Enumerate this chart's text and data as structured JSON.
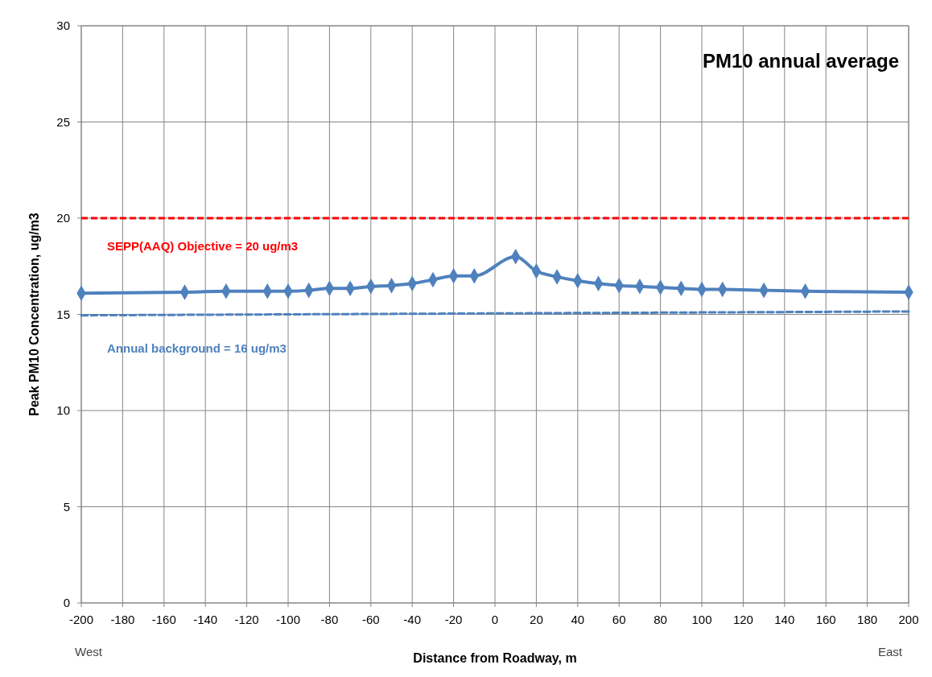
{
  "chart_data": {
    "type": "line",
    "title": "PM10 annual average",
    "xlabel": "Distance from Roadway, m",
    "ylabel": "Peak PM10 Concentration, ug/m3",
    "annotations": [
      "West",
      "East"
    ],
    "x": [
      -200,
      -150,
      -130,
      -110,
      -100,
      -90,
      -80,
      -70,
      -60,
      -50,
      -40,
      -30,
      -20,
      -10,
      10,
      20,
      30,
      40,
      50,
      60,
      70,
      80,
      90,
      100,
      110,
      130,
      150,
      200
    ],
    "series": [
      {
        "color": "#4f81bd",
        "values": [
          16.1,
          16.15,
          16.2,
          16.2,
          16.2,
          16.25,
          16.35,
          16.35,
          16.45,
          16.5,
          16.6,
          16.8,
          17.0,
          17.0,
          18.0,
          17.25,
          16.95,
          16.75,
          16.6,
          16.5,
          16.45,
          16.4,
          16.35,
          16.3,
          16.3,
          16.25,
          16.2,
          16.15
        ]
      },
      {
        "name": "Annual background = 16 ug/m3",
        "color": "#4f81bd",
        "x": [
          -200,
          200
        ],
        "values": [
          14.95,
          15.15
        ],
        "marker": "none",
        "line_style": "dashed"
      }
    ],
    "xlim": [
      -200,
      200
    ],
    "xticks": [
      -200,
      -180,
      -160,
      -140,
      -120,
      -100,
      -80,
      -60,
      -40,
      -20,
      0,
      20,
      40,
      60,
      80,
      100,
      120,
      140,
      160,
      180,
      200
    ],
    "ylim": [
      0,
      30
    ],
    "yticks": [
      0,
      5,
      10,
      15,
      20,
      25,
      30
    ],
    "ref_lines": [
      {
        "axis": "y",
        "value": 20,
        "label": "SEPP(AAQ) Objective = 20 ug/m3",
        "color": "#ff0000",
        "line_style": "dashed"
      }
    ],
    "grid": true,
    "marker": "diamond",
    "line_style": "solid"
  }
}
